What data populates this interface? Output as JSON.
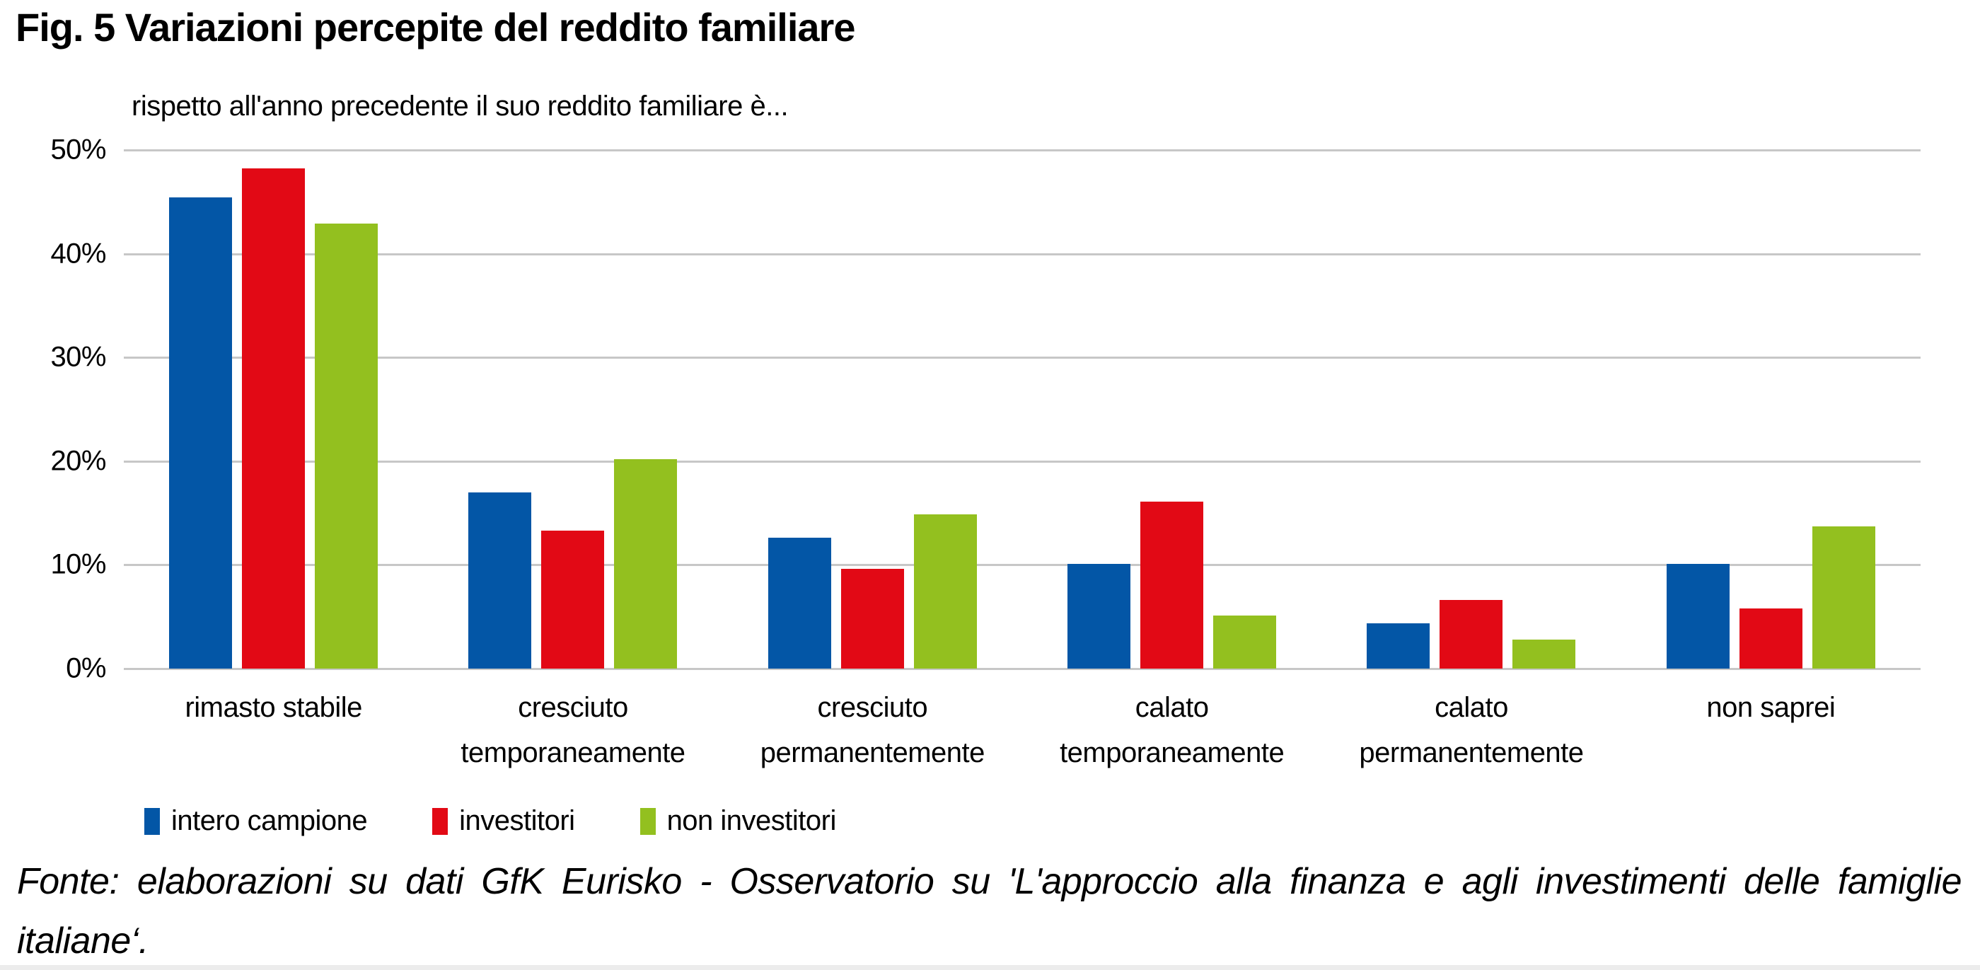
{
  "title": "Fig. 5 Variazioni percepite del reddito familiare",
  "chart_data": {
    "type": "bar",
    "title": "Fig. 5 Variazioni percepite del reddito familiare",
    "subtitle": "rispetto all'anno precedente il suo reddito familiare è...",
    "categories": [
      "rimasto stabile",
      "cresciuto temporaneamente",
      "cresciuto permanentemente",
      "calato temporaneamente",
      "calato permanentemente",
      "non saprei"
    ],
    "series": [
      {
        "name": "intero campione",
        "color": "#0356a6",
        "values": [
          45.4,
          17.0,
          12.6,
          10.1,
          4.4,
          10.1
        ]
      },
      {
        "name": "investitori",
        "color": "#e20915",
        "values": [
          48.2,
          13.3,
          9.6,
          16.1,
          6.6,
          5.8
        ]
      },
      {
        "name": "non investitori",
        "color": "#93c01f",
        "values": [
          42.9,
          20.2,
          14.9,
          5.1,
          2.8,
          13.7
        ]
      }
    ],
    "ylabel": "",
    "xlabel": "",
    "ylim": [
      0,
      50
    ],
    "y_axis": {
      "tick_labels": [
        "50%",
        "40%",
        "30%",
        "20%",
        "10%",
        "0%"
      ],
      "tick_values": [
        50,
        40,
        30,
        20,
        10,
        0
      ],
      "unit": "percent"
    },
    "grid": "horizontal",
    "gridline_color": "#c7c7c7",
    "legend_position": "bottom-left"
  },
  "source_note": "Fonte: elaborazioni su dati GfK Eurisko - Osservatorio su 'L'approccio alla finanza e agli investimenti delle famiglie italiane‘."
}
